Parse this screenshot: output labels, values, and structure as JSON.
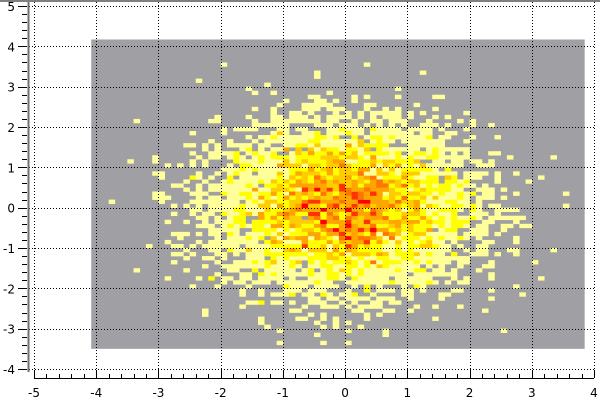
{
  "chart_data": {
    "type": "heatmap",
    "title": "",
    "xlabel": "",
    "ylabel": "",
    "xlim": [
      -5,
      4
    ],
    "ylim": [
      -4,
      5
    ],
    "x_ticks": [
      "-5",
      "-4",
      "-3",
      "-2",
      "-1",
      "0",
      "1",
      "2",
      "3",
      "4"
    ],
    "y_ticks": [
      "5",
      "4",
      "3",
      "2",
      "1",
      "0",
      "-1",
      "-2",
      "-3",
      "-4"
    ],
    "grid": true,
    "histogram_range": {
      "x": [
        -4.08,
        3.85
      ],
      "y": [
        -3.5,
        4.17
      ]
    },
    "bin_size": {
      "x": 0.1,
      "y": 0.1
    },
    "distribution": "2D gaussian centered near (0, 0), sigma about 1 in x and y",
    "background_color": "#a0a0a4",
    "colormap": [
      "#ffff99",
      "#ffff00",
      "#ffcc00",
      "#ffa500",
      "#ff7700",
      "#ff3300",
      "#ff0000"
    ]
  }
}
